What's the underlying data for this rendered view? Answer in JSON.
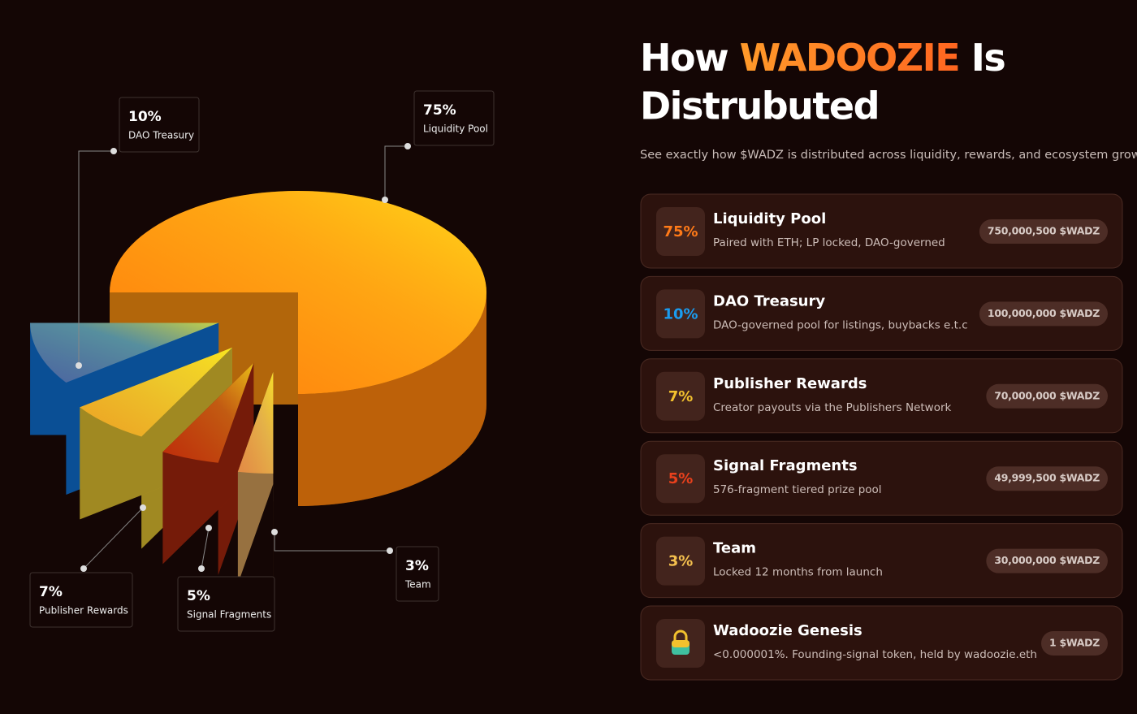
{
  "header": {
    "title_start": "How",
    "title_highlight": "WADOOZIE",
    "title_end": "Is",
    "title_line2": "Distrubuted",
    "subtitle": "See exactly how $WADZ is distributed across liquidity, rewards, and ecosystem growth."
  },
  "chart_data": {
    "type": "pie",
    "categories": [
      "Liquidity Pool",
      "DAO Treasury",
      "Publisher Rewards",
      "Signal Fragments",
      "Team"
    ],
    "values": [
      75,
      10,
      7,
      5,
      3
    ],
    "value_labels": [
      "75%",
      "10%",
      "7%",
      "5%",
      "3%"
    ],
    "colors": [
      "#ff9210",
      "#0f72d6",
      "#e6c431",
      "#a8280e",
      "#d9a35c"
    ]
  },
  "allocations": [
    {
      "percent": "75%",
      "color": "#ff7a18",
      "title": "Liquidity Pool",
      "description": "Paired with ETH; LP locked, DAO-governed",
      "amount": "750,000,500 $WADZ"
    },
    {
      "percent": "10%",
      "color": "#1a9cf0",
      "title": "DAO Treasury",
      "description": "DAO-governed pool for listings, buybacks e.t.c",
      "amount": "100,000,000 $WADZ"
    },
    {
      "percent": "7%",
      "color": "#f2c12e",
      "title": "Publisher Rewards",
      "description": "Creator payouts via the Publishers Network",
      "amount": "70,000,000 $WADZ"
    },
    {
      "percent": "5%",
      "color": "#e8401c",
      "title": "Signal Fragments",
      "description": "576-fragment tiered prize pool",
      "amount": "49,999,500 $WADZ"
    },
    {
      "percent": "3%",
      "color": "#f4c04e",
      "title": "Team",
      "description": "Locked 12 months from launch",
      "amount": "30,000,000 $WADZ"
    },
    {
      "title": "Wadoozie Genesis",
      "description": "<0.000001%. Founding-signal token, held by wadoozie.eth",
      "amount": "1 $WADZ"
    }
  ]
}
